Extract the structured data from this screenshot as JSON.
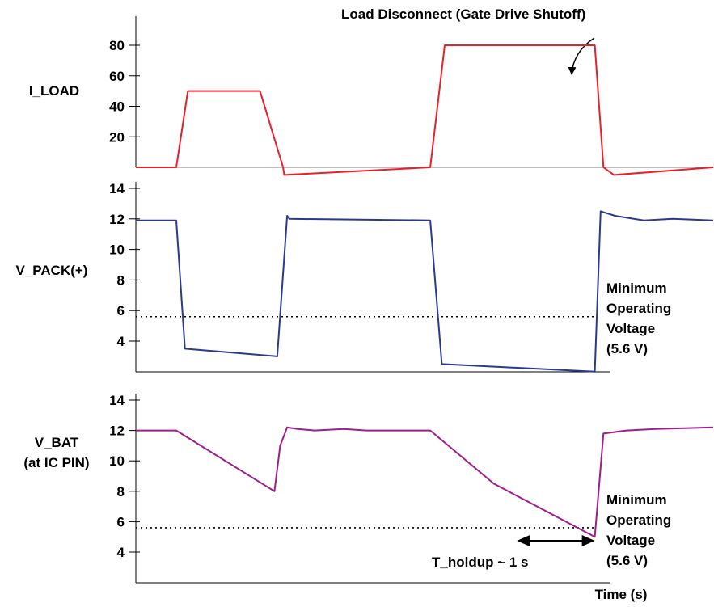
{
  "colors": {
    "i_load": "#e8202a",
    "v_pack": "#2b3a8f",
    "v_bat": "#a01d8c",
    "axis": "#000000",
    "threshold": "#000000"
  },
  "chart_data": [
    {
      "type": "line",
      "ylabel": "I_LOAD",
      "ylim": [
        0,
        95
      ],
      "xlim": [
        0,
        10
      ],
      "yticks": [
        20,
        40,
        60,
        80
      ],
      "ytick_labels": [
        "20",
        "40",
        "60",
        "80"
      ],
      "series": [
        {
          "x": [
            0,
            0.7,
            0.9,
            2.15,
            2.55,
            2.57,
            5.1,
            5.35,
            7.95,
            8.1,
            8.28,
            10
          ],
          "y": [
            0,
            0,
            50,
            50,
            0,
            -5,
            0,
            80,
            80,
            0,
            -5,
            0
          ]
        }
      ],
      "annotation": "Load Disconnect (Gate Drive Shutoff)"
    },
    {
      "type": "line",
      "ylabel": "V_PACK(+)",
      "ylim": [
        2,
        14.5
      ],
      "xlim": [
        0,
        10
      ],
      "yticks": [
        4,
        6,
        8,
        10,
        12,
        14
      ],
      "ytick_labels": [
        "4",
        "6",
        "8",
        "10",
        "12",
        "14"
      ],
      "threshold": 5.6,
      "threshold_note": [
        "Minimum",
        "Operating",
        "Voltage",
        "(5.6 V)"
      ],
      "series": [
        {
          "x": [
            0,
            0.7,
            0.85,
            2.45,
            2.62,
            2.66,
            5.1,
            5.3,
            7.95,
            8.05,
            8.3,
            8.8,
            9.3,
            10
          ],
          "y": [
            11.9,
            11.9,
            3.5,
            3.0,
            12.2,
            12.0,
            11.9,
            2.5,
            2.0,
            12.5,
            12.2,
            11.9,
            12.0,
            11.9
          ]
        }
      ]
    },
    {
      "type": "line",
      "ylabel_lines": [
        "V_BAT",
        "(at IC PIN)"
      ],
      "ylim": [
        2.5,
        14.5
      ],
      "xlim": [
        0,
        10
      ],
      "yticks": [
        4,
        6,
        8,
        10,
        12,
        14
      ],
      "ytick_labels": [
        "4",
        "6",
        "8",
        "10",
        "12",
        "14"
      ],
      "threshold": 5.6,
      "threshold_note": [
        "Minimum",
        "Operating",
        "Voltage",
        "(5.6 V)"
      ],
      "hold_label": "T_holdup ~ 1 s",
      "hold_range": [
        6.6,
        7.95
      ],
      "xlabel": "Time (s)",
      "series": [
        {
          "x": [
            0,
            0.7,
            2.4,
            2.5,
            2.62,
            2.8,
            3.1,
            3.6,
            4.0,
            4.4,
            5.1,
            6.2,
            7.95,
            8.1,
            8.5,
            9.0,
            10
          ],
          "y": [
            12,
            12,
            8,
            11,
            12.2,
            12.1,
            12.0,
            12.1,
            12.0,
            12.0,
            12.0,
            8.5,
            5.0,
            11.8,
            12.0,
            12.1,
            12.2
          ]
        }
      ]
    }
  ]
}
